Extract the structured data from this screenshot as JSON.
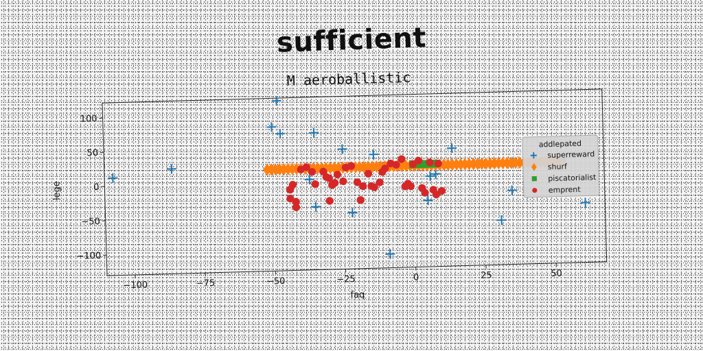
{
  "page_title": "sufficient",
  "chart_data": {
    "type": "scatter",
    "title": "M aeroballistic",
    "xlabel": "faq",
    "ylabel": "lege",
    "xlim": [
      -110,
      68
    ],
    "ylim": [
      -130,
      122
    ],
    "xticks": [
      -100,
      -75,
      -50,
      -25,
      0,
      25,
      50
    ],
    "yticks": [
      -100,
      -50,
      0,
      50,
      100
    ],
    "grid": false,
    "legend": {
      "title": "addlepated",
      "placement": "right"
    },
    "series": [
      {
        "name": "superreward",
        "marker": "plus",
        "color": "#1f77b4",
        "points": [
          [
            -107,
            12
          ],
          [
            -86,
            23
          ],
          [
            -48,
            118
          ],
          [
            -50,
            80
          ],
          [
            -47,
            70
          ],
          [
            -35,
            70
          ],
          [
            -37,
            2
          ],
          [
            -35,
            -38
          ],
          [
            -25,
            45
          ],
          [
            -22,
            -48
          ],
          [
            -14,
            36
          ],
          [
            -9,
            -110
          ],
          [
            5,
            -33
          ],
          [
            6,
            2
          ],
          [
            8,
            5
          ],
          [
            14,
            42
          ],
          [
            31,
            -65
          ],
          [
            35,
            -22
          ],
          [
            53,
            20
          ],
          [
            61,
            -43
          ]
        ]
      },
      {
        "name": "shurf",
        "marker": "diamond",
        "color": "#ff7f0e",
        "x_range": [
          -52,
          53
        ],
        "x_step": 1.5,
        "y": 18
      },
      {
        "name": "piscatorialist",
        "marker": "square",
        "color": "#2ca02c",
        "x_range": [
          0,
          8
        ],
        "x_step": 0.8,
        "y": 20
      },
      {
        "name": "emprent",
        "marker": "circle",
        "color": "#d62728",
        "points": [
          [
            -42,
            -38
          ],
          [
            -44,
            -25
          ],
          [
            -42,
            -30
          ],
          [
            -44,
            -12
          ],
          [
            -43,
            -5
          ],
          [
            -40,
            17
          ],
          [
            -38,
            20
          ],
          [
            -36,
            13
          ],
          [
            -35,
            -5
          ],
          [
            -32,
            13
          ],
          [
            -31,
            5
          ],
          [
            -30,
            3
          ],
          [
            -29,
            -7
          ],
          [
            -30,
            -30
          ],
          [
            -28,
            -4
          ],
          [
            -27,
            8
          ],
          [
            -25,
            -2
          ],
          [
            -24,
            18
          ],
          [
            -22,
            20
          ],
          [
            -20,
            -4
          ],
          [
            -19,
            -30
          ],
          [
            -18,
            -10
          ],
          [
            -16,
            8
          ],
          [
            -15,
            -10
          ],
          [
            -14,
            -12
          ],
          [
            -12,
            -5
          ],
          [
            -11,
            10
          ],
          [
            -10,
            15
          ],
          [
            -8,
            22
          ],
          [
            -6,
            20
          ],
          [
            -4,
            28
          ],
          [
            -3,
            -12
          ],
          [
            -2,
            -8
          ],
          [
            -1,
            -12
          ],
          [
            0,
            20
          ],
          [
            2,
            25
          ],
          [
            3,
            -15
          ],
          [
            4,
            -22
          ],
          [
            6,
            22
          ],
          [
            7,
            -18
          ],
          [
            8,
            -25
          ],
          [
            9,
            20
          ],
          [
            10,
            -20
          ]
        ]
      }
    ]
  }
}
